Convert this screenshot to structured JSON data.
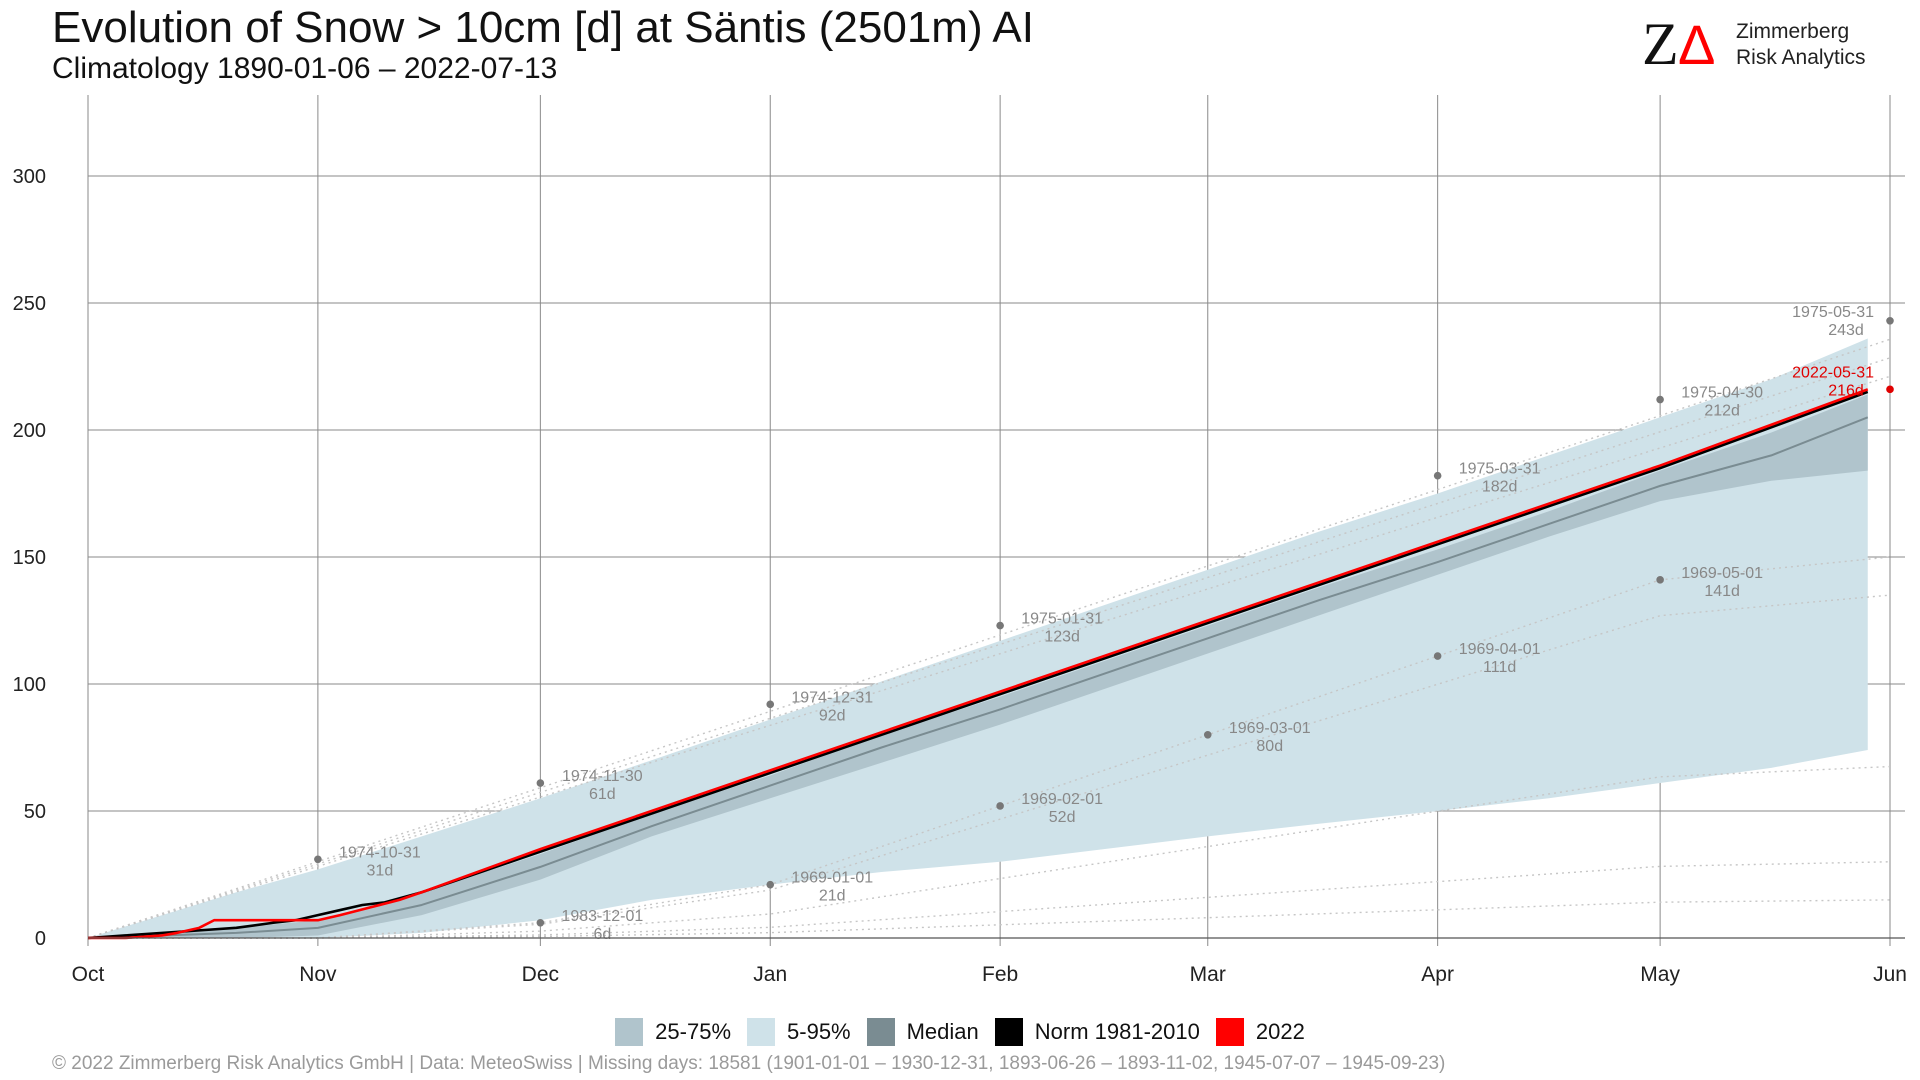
{
  "header": {
    "title": "Evolution of Snow > 10cm [d] at Säntis (2501m) AI",
    "subtitle": "Climatology 1890-01-06 – 2022-07-13"
  },
  "logo": {
    "mark_left": "Z",
    "mark_right": "Δ",
    "line1": "Zimmerberg",
    "line2": "Risk Analytics",
    "mark_color": "#111111",
    "accent_color": "#ff0000"
  },
  "legend": {
    "items": [
      {
        "label": "25-75%",
        "color": "#b0c4cc"
      },
      {
        "label": "5-95%",
        "color": "#cfe2e9"
      },
      {
        "label": "Median",
        "color": "#7a8c92"
      },
      {
        "label": "Norm 1981-2010",
        "color": "#000000"
      },
      {
        "label": "2022",
        "color": "#ff0000"
      }
    ]
  },
  "footer": "©  2022 Zimmerberg Risk Analytics GmbH | Data: MeteoSwiss | Missing days: 18581 (1901-01-01 – 1930-12-31, 1893-06-26 – 1893-11-02, 1945-07-07 – 1945-09-23)",
  "chart_data": {
    "type": "area",
    "x_unit": "days since Oct 1",
    "xlim": [
      0,
      244
    ],
    "ylim": [
      0,
      330
    ],
    "x_ticks": [
      {
        "label": "Oct",
        "x": 0
      },
      {
        "label": "Nov",
        "x": 31
      },
      {
        "label": "Dec",
        "x": 61
      },
      {
        "label": "Jan",
        "x": 92
      },
      {
        "label": "Feb",
        "x": 123
      },
      {
        "label": "Mar",
        "x": 151
      },
      {
        "label": "Apr",
        "x": 182
      },
      {
        "label": "May",
        "x": 212
      },
      {
        "label": "Jun",
        "x": 243
      }
    ],
    "y_ticks": [
      0,
      50,
      100,
      150,
      200,
      250,
      300
    ],
    "grid": true,
    "legend_position": "bottom",
    "band_5_95": {
      "x": [
        0,
        10,
        20,
        31,
        45,
        61,
        76,
        92,
        107,
        123,
        137,
        151,
        166,
        182,
        197,
        212,
        227,
        240
      ],
      "upper": [
        0,
        9,
        18,
        27,
        40,
        55,
        70,
        86,
        101,
        117,
        131,
        145,
        160,
        175,
        190,
        205,
        220,
        236
      ],
      "lower": [
        0,
        0,
        0,
        0,
        2,
        7,
        15,
        21,
        26,
        30,
        35,
        40,
        45,
        50,
        55,
        61,
        67,
        74
      ]
    },
    "band_25_75": {
      "x": [
        0,
        10,
        20,
        31,
        45,
        61,
        76,
        92,
        107,
        123,
        137,
        151,
        166,
        182,
        197,
        212,
        227,
        240
      ],
      "upper": [
        0,
        2,
        4,
        7,
        18,
        33,
        49,
        64,
        80,
        95,
        109,
        123,
        138,
        153,
        168,
        184,
        199,
        214
      ],
      "lower": [
        0,
        0,
        0,
        1,
        9,
        23,
        40,
        55,
        69,
        84,
        98,
        112,
        127,
        143,
        158,
        172,
        180,
        184
      ]
    },
    "series": [
      {
        "name": "Median",
        "color": "#7a8c92",
        "x": [
          0,
          10,
          20,
          31,
          45,
          61,
          76,
          92,
          107,
          123,
          137,
          151,
          166,
          182,
          197,
          212,
          227,
          240
        ],
        "y": [
          0,
          1,
          2,
          4,
          13,
          28,
          44,
          60,
          75,
          90,
          104,
          118,
          133,
          148,
          163,
          178,
          190,
          205
        ]
      },
      {
        "name": "Norm 1981-2010",
        "color": "#000000",
        "x": [
          0,
          5,
          10,
          15,
          20,
          25,
          28,
          31,
          34,
          37,
          40,
          45,
          61,
          92,
          123,
          151,
          182,
          212,
          240
        ],
        "y": [
          0,
          1,
          2,
          3,
          4,
          6,
          7,
          9,
          11,
          13,
          14,
          18,
          34,
          65,
          96,
          124,
          155,
          185,
          215
        ]
      },
      {
        "name": "2022",
        "color": "#ff0000",
        "x": [
          0,
          5,
          10,
          12,
          15,
          17,
          31,
          34,
          38,
          42,
          45,
          61,
          92,
          123,
          151,
          182,
          212,
          240
        ],
        "y": [
          0,
          0,
          1,
          2,
          4,
          7,
          7,
          9,
          12,
          15,
          18,
          35,
          66,
          97,
          125,
          156,
          186,
          216
        ]
      }
    ],
    "record_lines": {
      "x": [
        0,
        31,
        61,
        92,
        123,
        151,
        182,
        212,
        243
      ],
      "max_y": [
        0,
        31,
        61,
        92,
        123,
        151,
        182,
        212,
        243
      ],
      "min_y": [
        0,
        0,
        6,
        21,
        52,
        80,
        111,
        141,
        150
      ]
    },
    "annotations": [
      {
        "x": 31,
        "y": 31,
        "date": "1974-10-31",
        "value": "31d",
        "kind": "max"
      },
      {
        "x": 61,
        "y": 61,
        "date": "1974-11-30",
        "value": "61d",
        "kind": "max"
      },
      {
        "x": 92,
        "y": 92,
        "date": "1974-12-31",
        "value": "92d",
        "kind": "max"
      },
      {
        "x": 123,
        "y": 123,
        "date": "1975-01-31",
        "value": "123d",
        "kind": "max"
      },
      {
        "x": 182,
        "y": 182,
        "date": "1975-03-31",
        "value": "182d",
        "kind": "max"
      },
      {
        "x": 212,
        "y": 212,
        "date": "1975-04-30",
        "value": "212d",
        "kind": "max"
      },
      {
        "x": 243,
        "y": 243,
        "date": "1975-05-31",
        "value": "243d",
        "kind": "max"
      },
      {
        "x": 61,
        "y": 6,
        "date": "1983-12-01",
        "value": "6d",
        "kind": "min"
      },
      {
        "x": 92,
        "y": 21,
        "date": "1969-01-01",
        "value": "21d",
        "kind": "min"
      },
      {
        "x": 123,
        "y": 52,
        "date": "1969-02-01",
        "value": "52d",
        "kind": "min"
      },
      {
        "x": 151,
        "y": 80,
        "date": "1969-03-01",
        "value": "80d",
        "kind": "min"
      },
      {
        "x": 182,
        "y": 111,
        "date": "1969-04-01",
        "value": "111d",
        "kind": "min"
      },
      {
        "x": 212,
        "y": 141,
        "date": "1969-05-01",
        "value": "141d",
        "kind": "min"
      },
      {
        "x": 243,
        "y": 216,
        "date": "2022-05-31",
        "value": "216d",
        "kind": "current"
      }
    ]
  }
}
